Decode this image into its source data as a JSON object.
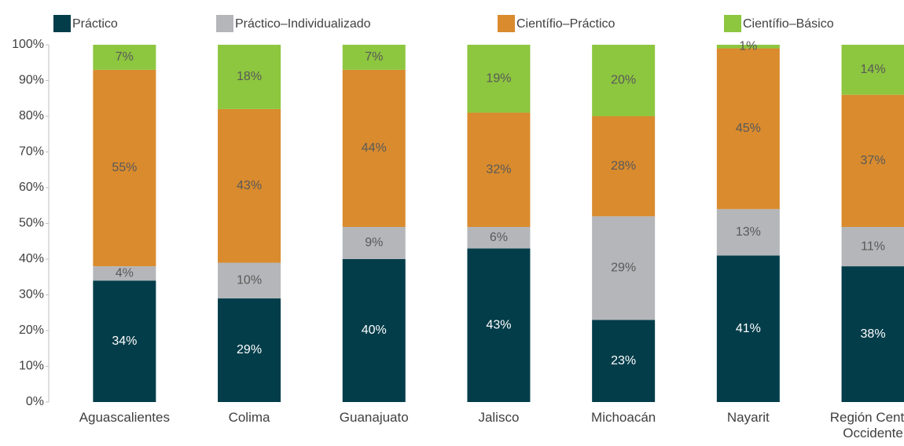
{
  "chart_data": {
    "type": "stacked_bar",
    "categories": [
      "Aguascalientes",
      "Colima",
      "Guanajuato",
      "Jalisco",
      "Michoacán",
      "Nayarit",
      "Región Centro Occidente"
    ],
    "series": [
      {
        "name": "Práctico",
        "color": "#033d4a",
        "label_color": "#ffffff",
        "values": [
          34,
          29,
          40,
          43,
          23,
          41,
          38
        ],
        "value_labels": [
          "34%",
          "29%",
          "40%",
          "43%",
          "23%",
          "41%",
          "38%"
        ]
      },
      {
        "name": "Práctico–Individualizado",
        "color": "#b4b6b9",
        "label_color": "#595959",
        "values": [
          4,
          10,
          9,
          6,
          29,
          13,
          11
        ],
        "value_labels": [
          "4%",
          "10%",
          "9%",
          "6%",
          "29%",
          "13%",
          "11%"
        ]
      },
      {
        "name": "Científio–Práctico",
        "color": "#d98b2e",
        "label_color": "#595959",
        "values": [
          55,
          43,
          44,
          32,
          28,
          45,
          37
        ],
        "value_labels": [
          "55%",
          "43%",
          "44%",
          "32%",
          "28%",
          "45%",
          "37%"
        ]
      },
      {
        "name": "Científio–Básico",
        "color": "#8dc63f",
        "label_color": "#595959",
        "values": [
          7,
          18,
          7,
          19,
          20,
          1,
          14
        ],
        "value_labels": [
          "7%",
          "18%",
          "7%",
          "19%",
          "20%",
          "1%",
          "14%"
        ]
      }
    ],
    "ylim": [
      0,
      100
    ],
    "yticks": [
      {
        "value": 0,
        "label": "0%"
      },
      {
        "value": 10,
        "label": "10%"
      },
      {
        "value": 20,
        "label": "20%"
      },
      {
        "value": 30,
        "label": "30%"
      },
      {
        "value": 40,
        "label": "40%"
      },
      {
        "value": 50,
        "label": "50%"
      },
      {
        "value": 60,
        "label": "60%"
      },
      {
        "value": 70,
        "label": "70%"
      },
      {
        "value": 80,
        "label": "80%"
      },
      {
        "value": 90,
        "label": "90%"
      },
      {
        "value": 100,
        "label": "100%"
      }
    ],
    "legend": "top",
    "grid": false
  }
}
